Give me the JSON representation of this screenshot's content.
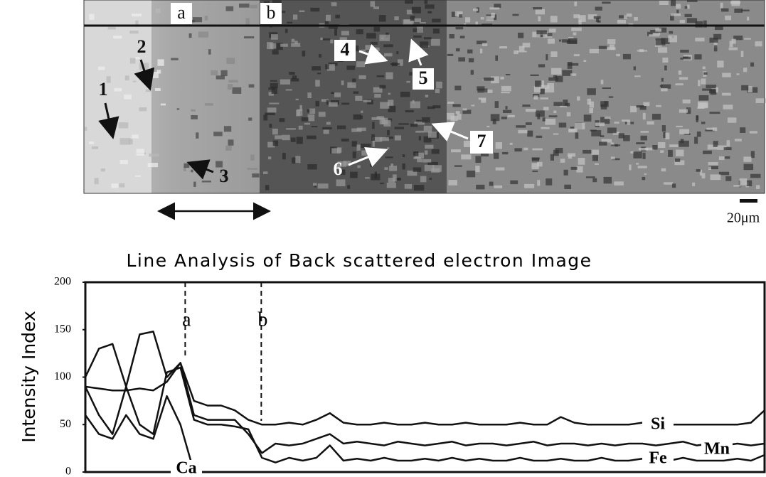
{
  "micrograph": {
    "labels": [
      "a",
      "b",
      "1",
      "2",
      "3",
      "4",
      "5",
      "6",
      "7"
    ],
    "scale_bar": "20μm"
  },
  "chart_data": {
    "type": "line",
    "title": "Line Analysis of Back scattered electron Image",
    "y_label": "Intensity Index",
    "x": [
      0,
      2,
      4,
      6,
      8,
      10,
      12,
      14,
      16,
      18,
      20,
      22,
      24,
      26,
      28,
      30,
      32,
      34,
      36,
      38,
      40,
      42,
      44,
      46,
      48,
      50,
      52,
      54,
      56,
      58,
      60,
      62,
      64,
      66,
      68,
      70,
      72,
      74,
      76,
      78,
      80,
      82,
      84,
      86,
      88,
      90,
      92,
      94,
      96,
      98,
      100
    ],
    "xlim": [
      0,
      100
    ],
    "ylim": [
      0,
      200
    ],
    "yticks": [
      0,
      50,
      100,
      150,
      200
    ],
    "annotations": [
      {
        "text": "a",
        "x": 14.7
      },
      {
        "text": "b",
        "x": 25.9
      }
    ],
    "series": [
      {
        "name": "Si",
        "color": "#111111",
        "values": [
          90,
          88,
          86,
          86,
          88,
          86,
          95,
          115,
          75,
          70,
          70,
          65,
          55,
          50,
          50,
          52,
          50,
          55,
          62,
          52,
          50,
          50,
          52,
          50,
          50,
          52,
          50,
          50,
          52,
          50,
          50,
          50,
          52,
          50,
          50,
          58,
          52,
          50,
          50,
          50,
          50,
          52,
          50,
          50,
          50,
          50,
          50,
          50,
          50,
          52,
          65
        ]
      },
      {
        "name": "Mn",
        "color": "#111111",
        "values": [
          100,
          130,
          135,
          90,
          145,
          148,
          100,
          115,
          60,
          55,
          55,
          55,
          40,
          20,
          30,
          28,
          30,
          35,
          40,
          30,
          32,
          30,
          28,
          32,
          30,
          28,
          30,
          32,
          28,
          30,
          30,
          28,
          30,
          32,
          28,
          30,
          30,
          28,
          30,
          28,
          30,
          30,
          28,
          30,
          32,
          28,
          30,
          28,
          30,
          28,
          30
        ]
      },
      {
        "name": "Fe",
        "color": "#111111",
        "values": [
          90,
          60,
          40,
          90,
          50,
          40,
          105,
          110,
          55,
          50,
          50,
          48,
          45,
          15,
          10,
          15,
          12,
          15,
          28,
          12,
          14,
          12,
          15,
          12,
          12,
          14,
          12,
          15,
          12,
          14,
          12,
          12,
          15,
          12,
          12,
          14,
          12,
          12,
          15,
          12,
          12,
          14,
          12,
          12,
          15,
          12,
          12,
          12,
          14,
          12,
          18
        ]
      },
      {
        "name": "Ca",
        "color": "#111111",
        "values": [
          60,
          40,
          35,
          60,
          40,
          35,
          80,
          50,
          0,
          0,
          0,
          0,
          0,
          0,
          0,
          0,
          0,
          0,
          0,
          0,
          0,
          0,
          0,
          0,
          0,
          0,
          0,
          0,
          0,
          0,
          0,
          0,
          0,
          0,
          0,
          0,
          0,
          0,
          0,
          0,
          0,
          0,
          0,
          0,
          0,
          0,
          0,
          0,
          0,
          0,
          0
        ]
      }
    ]
  }
}
